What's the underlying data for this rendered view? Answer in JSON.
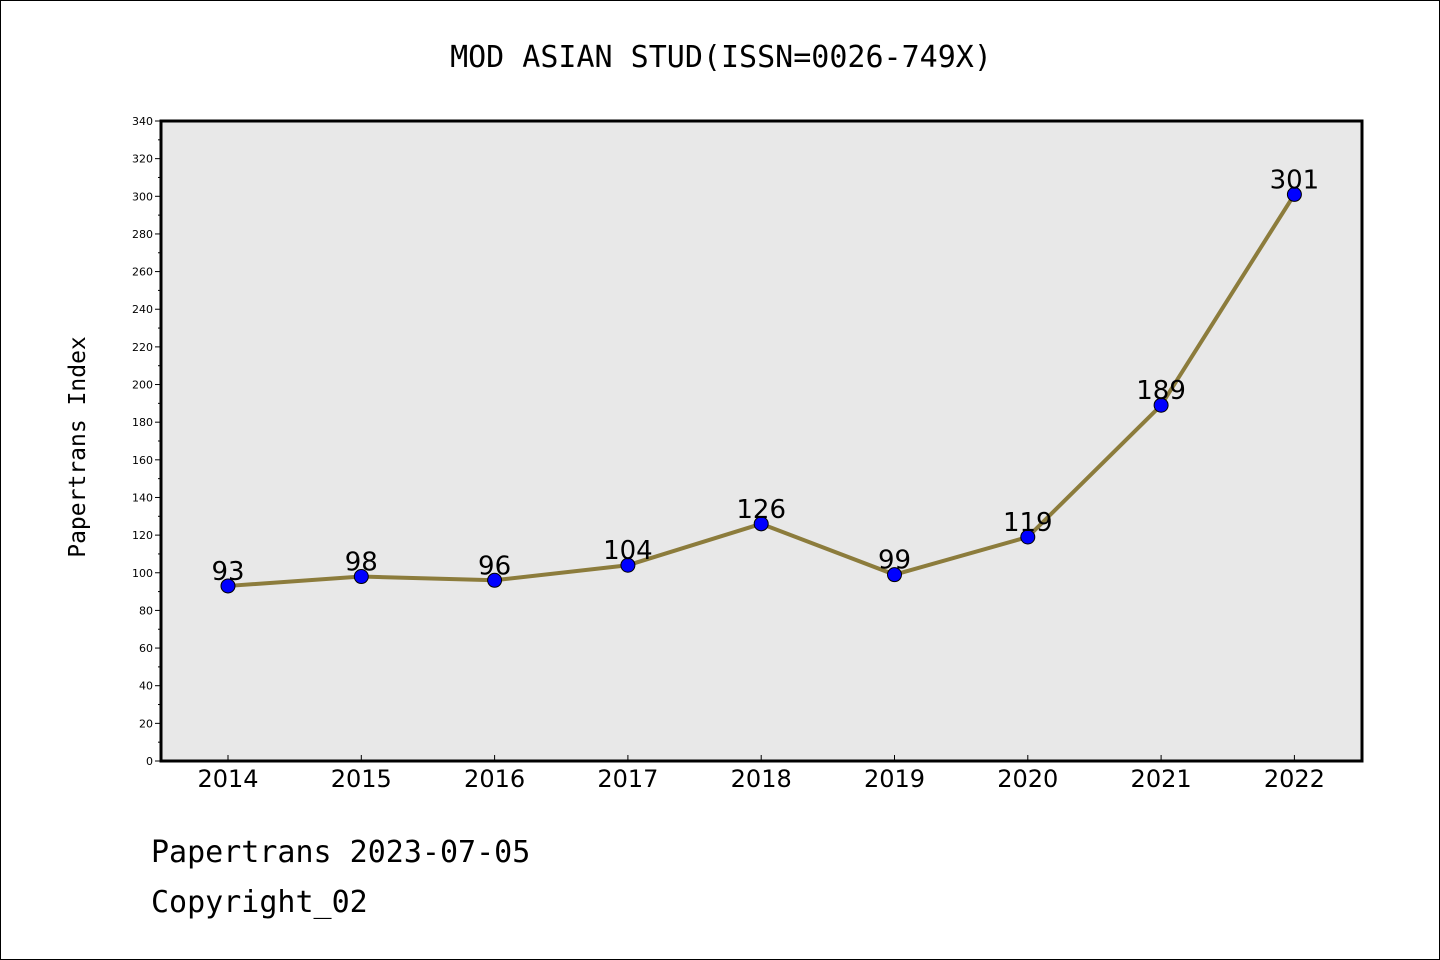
{
  "chart_data": {
    "type": "line",
    "title": "MOD ASIAN STUD(ISSN=0026-749X)",
    "ylabel": "Papertrans Index",
    "xlabel": "",
    "ylim": [
      0,
      340
    ],
    "yticks": [
      0,
      20,
      40,
      60,
      80,
      100,
      120,
      140,
      160,
      180,
      200,
      220,
      240,
      260,
      280,
      300,
      320,
      340
    ],
    "categories": [
      "2014",
      "2015",
      "2016",
      "2017",
      "2018",
      "2019",
      "2020",
      "2021",
      "2022"
    ],
    "series": [
      {
        "values": [
          93,
          98,
          96,
          104,
          126,
          99,
          119,
          189,
          301
        ]
      }
    ],
    "data_labels": [
      "93",
      "98",
      "96",
      "104",
      "126",
      "99",
      "119",
      "189",
      "301"
    ],
    "grid": false,
    "colors": {
      "line": "#8c7c3c",
      "marker": "#0000ff",
      "plot_background": "#e8e8e8"
    }
  },
  "footer": {
    "line1": "Papertrans 2023-07-05",
    "line2": "Copyright_02"
  }
}
